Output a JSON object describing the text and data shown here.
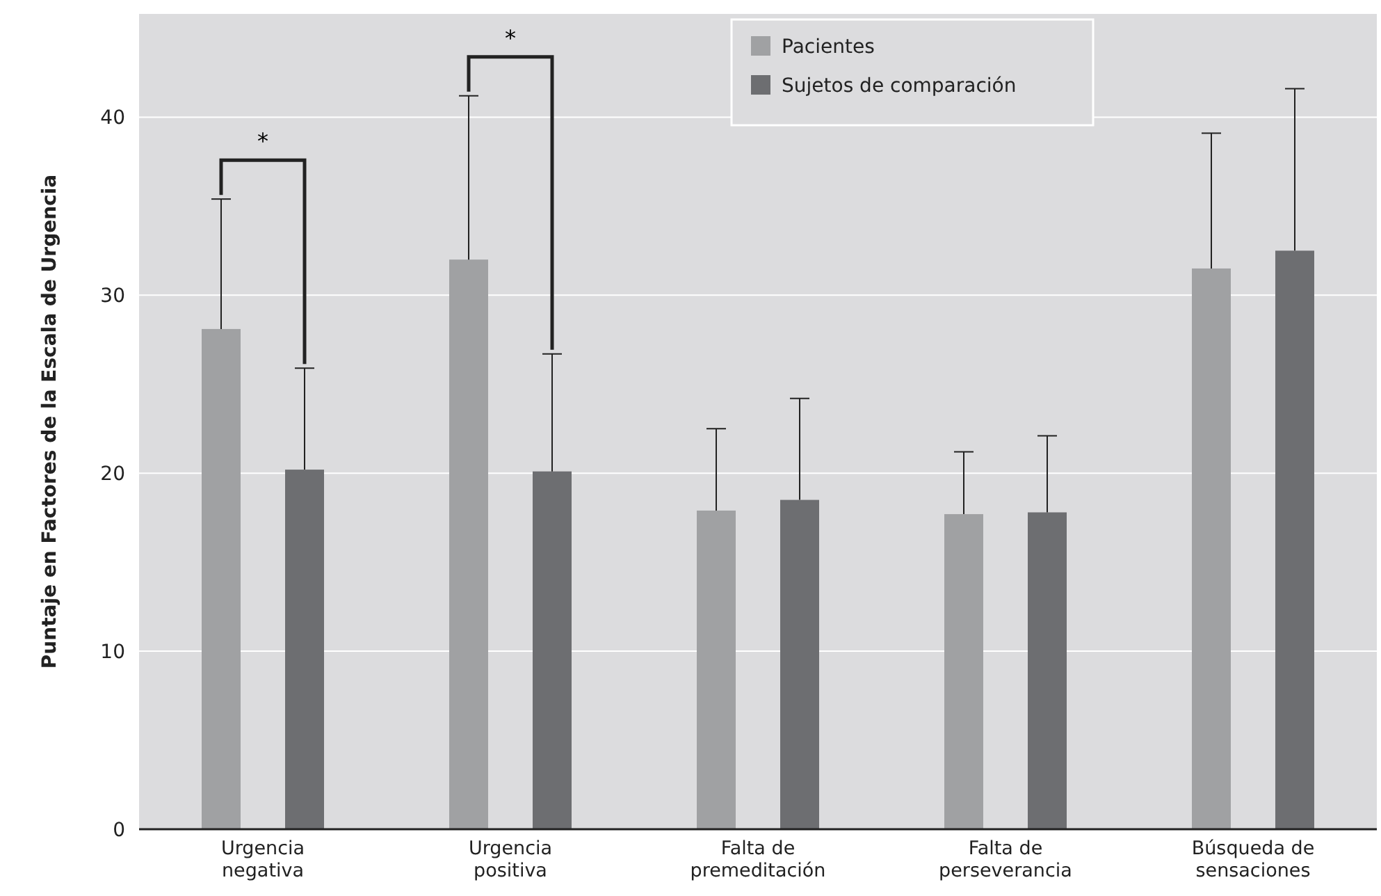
{
  "chart_data": {
    "type": "bar",
    "ylabel": "Puntaje en Factores de la Escala de Urgencia",
    "categories": [
      "Urgencia negativa",
      "Urgencia positiva",
      "Falta de premeditación",
      "Falta de perseverancia",
      "Búsqueda de sensaciones"
    ],
    "series": [
      {
        "name": "Pacientes",
        "color": "#a0a1a3",
        "values": [
          28.1,
          32.0,
          17.9,
          17.7,
          31.5
        ],
        "errors": [
          [
            28.1,
            35.4
          ],
          [
            32.0,
            41.2
          ],
          [
            17.9,
            22.5
          ],
          [
            17.7,
            21.2
          ],
          [
            31.5,
            39.1
          ]
        ]
      },
      {
        "name": "Sujetos de comparación",
        "color": "#6d6e71",
        "values": [
          20.2,
          20.1,
          18.5,
          17.8,
          32.5
        ],
        "errors": [
          [
            20.2,
            25.9
          ],
          [
            20.1,
            26.7
          ],
          [
            18.5,
            24.2
          ],
          [
            17.8,
            22.1
          ],
          [
            32.5,
            41.6
          ]
        ]
      }
    ],
    "ylim": [
      0,
      45.8
    ],
    "yticks": [
      0,
      10,
      20,
      30,
      40
    ],
    "grid": "y",
    "legend": "top",
    "annotations": [
      "*",
      "*"
    ]
  }
}
